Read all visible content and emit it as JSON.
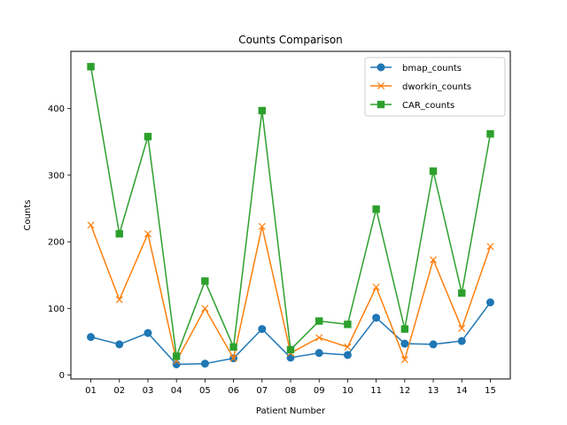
{
  "chart_data": {
    "type": "line",
    "title": "Counts Comparison",
    "xlabel": "Patient Number",
    "ylabel": "Counts",
    "categories": [
      "01",
      "02",
      "03",
      "04",
      "05",
      "06",
      "07",
      "08",
      "09",
      "10",
      "11",
      "12",
      "13",
      "14",
      "15"
    ],
    "ylim": [
      -6,
      486
    ],
    "yticks": [
      0,
      100,
      200,
      300,
      400
    ],
    "grid": false,
    "legend_position": "upper right",
    "series": [
      {
        "name": "bmap_counts",
        "marker": "circle",
        "color": "#1f77b4",
        "values": [
          57,
          46,
          63,
          16,
          17,
          25,
          69,
          26,
          33,
          30,
          86,
          47,
          46,
          51,
          109
        ]
      },
      {
        "name": "dworkin_counts",
        "marker": "x",
        "color": "#ff7f0e",
        "values": [
          225,
          113,
          212,
          21,
          100,
          25,
          223,
          33,
          56,
          42,
          132,
          23,
          173,
          70,
          193
        ]
      },
      {
        "name": "CAR_counts",
        "marker": "square",
        "color": "#2ca02c",
        "values": [
          463,
          212,
          358,
          28,
          141,
          42,
          397,
          38,
          81,
          76,
          249,
          69,
          306,
          123,
          362
        ]
      }
    ]
  }
}
